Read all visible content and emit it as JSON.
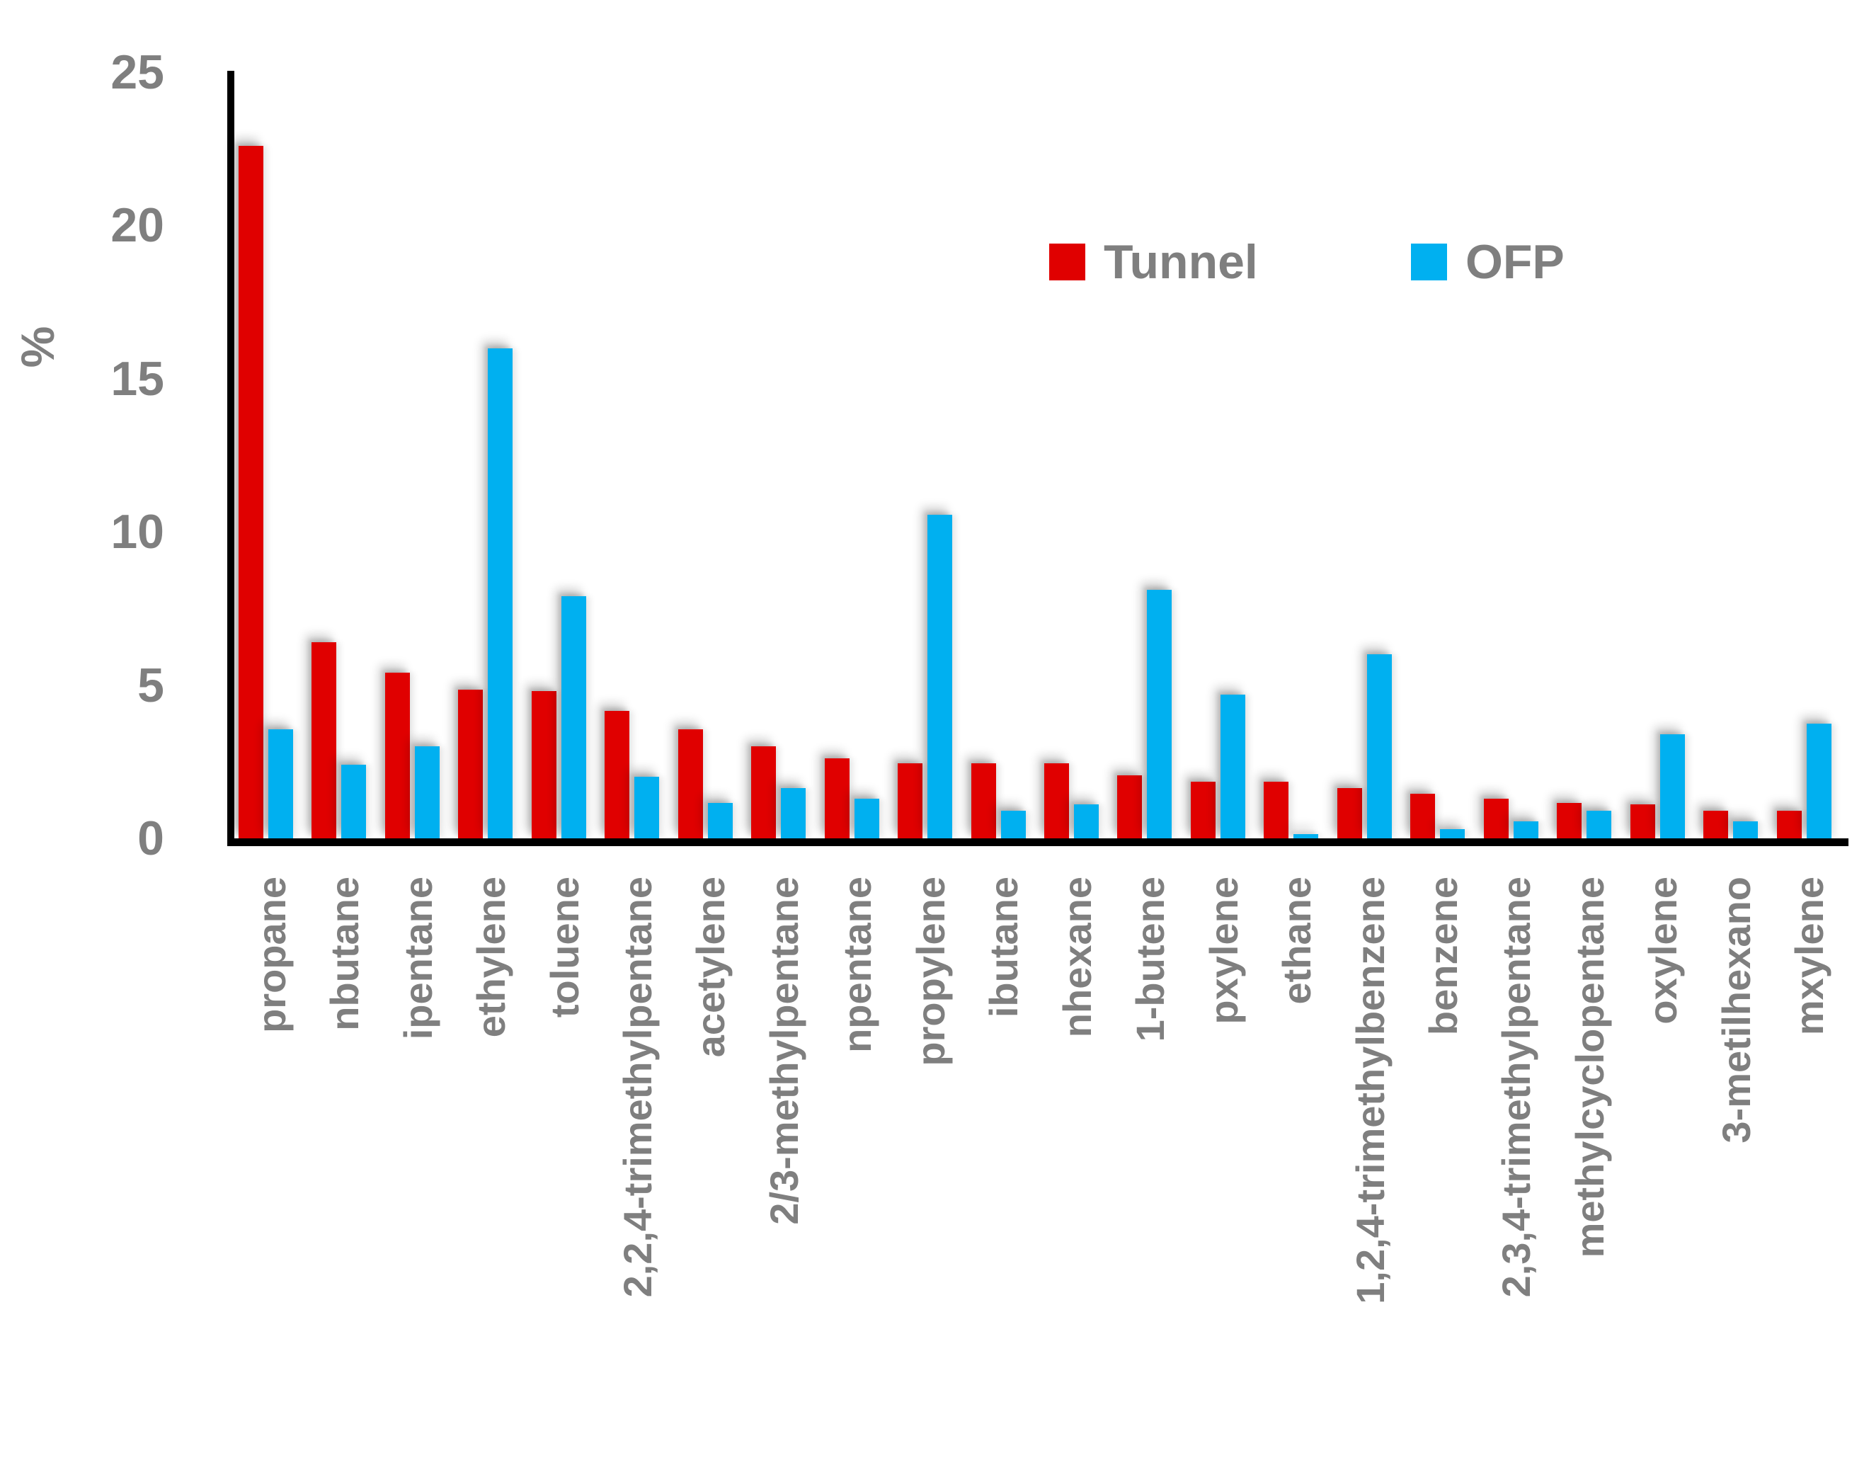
{
  "chart_data": {
    "type": "bar",
    "title": "",
    "ylabel": "%",
    "ylim": [
      0,
      25
    ],
    "yticks": [
      0,
      5,
      10,
      15,
      20,
      25
    ],
    "grid": false,
    "legend_position": "top-inside",
    "categories": [
      "propane",
      "nbutane",
      "ipentane",
      "ethylene",
      "toluene",
      "2,2,4-trimethylpentane",
      "acetylene",
      "2/3-methylpentane",
      "npentane",
      "propylene",
      "ibutane",
      "nhexane",
      "1-butene",
      "pxylene",
      "ethane",
      "1,2,4-trimethylbenzene",
      "benzene",
      "2,3,4-trimethylpentane",
      "methylcyclopentane",
      "oxylene",
      "3-metilhexano",
      "mxylene"
    ],
    "series": [
      {
        "name": "Tunnel",
        "color": "#e00000",
        "values": [
          22.6,
          6.4,
          5.4,
          4.85,
          4.8,
          4.15,
          3.55,
          3.0,
          2.6,
          2.45,
          2.45,
          2.45,
          2.05,
          1.85,
          1.85,
          1.65,
          1.45,
          1.3,
          1.15,
          1.1,
          0.9,
          0.9
        ]
      },
      {
        "name": "OFP",
        "color": "#00b0f0",
        "values": [
          3.55,
          2.4,
          3.0,
          16.0,
          7.9,
          2.0,
          1.15,
          1.65,
          1.3,
          10.55,
          0.9,
          1.1,
          8.1,
          4.7,
          0.15,
          6.0,
          0.3,
          0.55,
          0.9,
          3.4,
          0.55,
          3.75
        ]
      }
    ]
  },
  "colors": {
    "axis": "#000000",
    "tick_text": "#7f7f7f",
    "legend_text": "#7f7f7f"
  }
}
